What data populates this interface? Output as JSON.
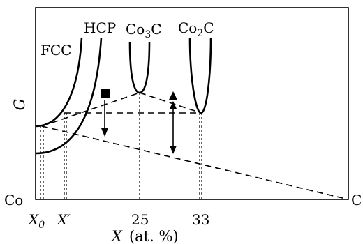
{
  "diagram": {
    "y_axis_label": "G",
    "x_axis_label": {
      "var": "X",
      "unit": "(at. %)"
    },
    "left_end_label": "Co",
    "right_end_label": "C",
    "phases": {
      "fcc": "FCC",
      "hcp": "HCP",
      "co3c": {
        "base": "Co",
        "sub1": "3",
        "tail": "C"
      },
      "co2c": {
        "base": "Co",
        "sub1": "2",
        "tail": "C"
      }
    },
    "x_ticks": {
      "x0": {
        "base": "X",
        "sub": "0"
      },
      "xprime": "X′",
      "t25": "25",
      "t33": "33"
    }
  }
}
